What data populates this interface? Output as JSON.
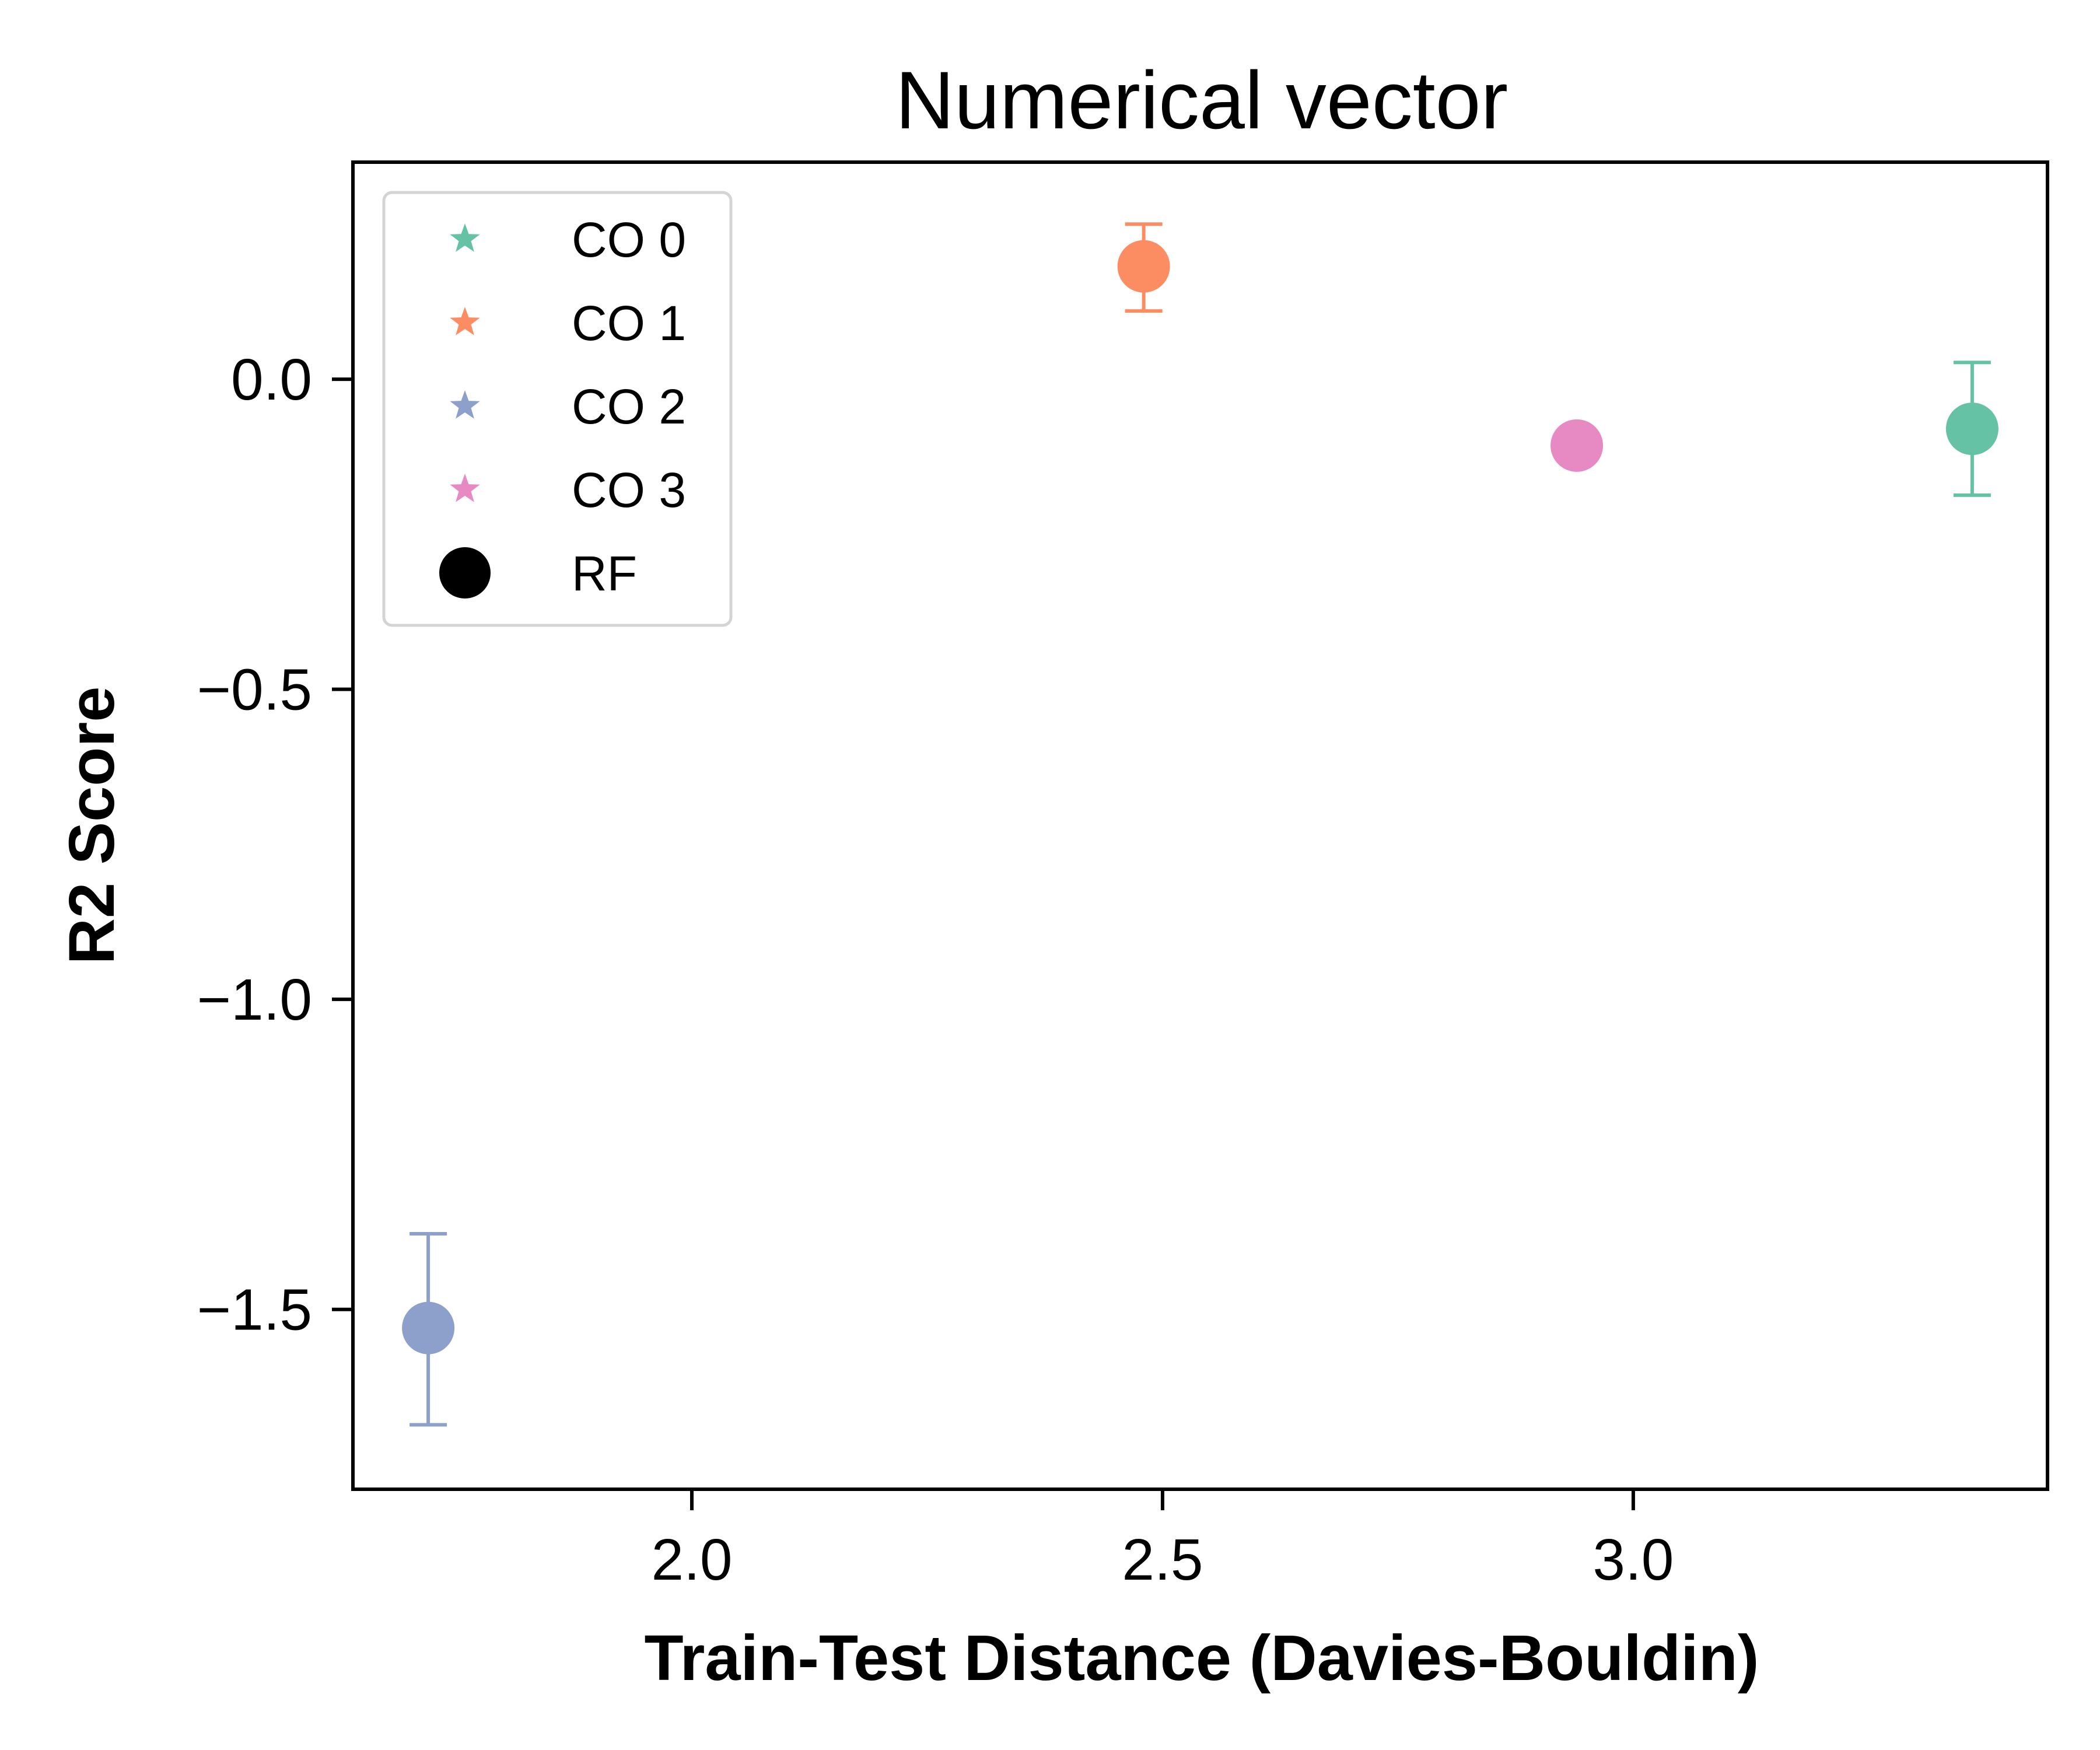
{
  "chart_data": {
    "type": "scatter",
    "title": "Numerical vector",
    "xlabel": "Train-Test Distance (Davies-Bouldin)",
    "ylabel": "R2 Score",
    "xlim": [
      1.64,
      3.44
    ],
    "ylim": [
      -1.79,
      0.35
    ],
    "xticks": [
      2.0,
      2.5,
      3.0
    ],
    "xtick_labels": [
      "2.0",
      "2.5",
      "3.0"
    ],
    "yticks": [
      0.0,
      -0.5,
      -1.0,
      -1.5
    ],
    "ytick_labels": [
      "0.0",
      "−0.5",
      "−1.0",
      "−1.5"
    ],
    "grid": false,
    "legend_position": "upper-left",
    "legend": [
      {
        "label": "CO 0",
        "marker": "star",
        "color": "#66c2a5"
      },
      {
        "label": "CO 1",
        "marker": "star",
        "color": "#fc8d62"
      },
      {
        "label": "CO 2",
        "marker": "star",
        "color": "#8da0cb"
      },
      {
        "label": "CO 3",
        "marker": "star",
        "color": "#e78ac3"
      },
      {
        "label": "RF",
        "marker": "circle",
        "color": "#000000"
      }
    ],
    "points": [
      {
        "name": "CO 0",
        "model": "RF",
        "x": 3.36,
        "y": -0.08,
        "err_low": -0.187,
        "err_high": 0.027,
        "color": "#66c2a5"
      },
      {
        "name": "CO 1",
        "model": "RF",
        "x": 2.48,
        "y": 0.182,
        "err_low": 0.11,
        "err_high": 0.25,
        "color": "#fc8d62"
      },
      {
        "name": "CO 2",
        "model": "RF",
        "x": 1.72,
        "y": -1.53,
        "err_low": -1.686,
        "err_high": -1.378,
        "color": "#8da0cb"
      },
      {
        "name": "CO 3",
        "model": "RF",
        "x": 2.94,
        "y": -0.107,
        "err_low": null,
        "err_high": null,
        "color": "#e78ac3"
      }
    ]
  }
}
